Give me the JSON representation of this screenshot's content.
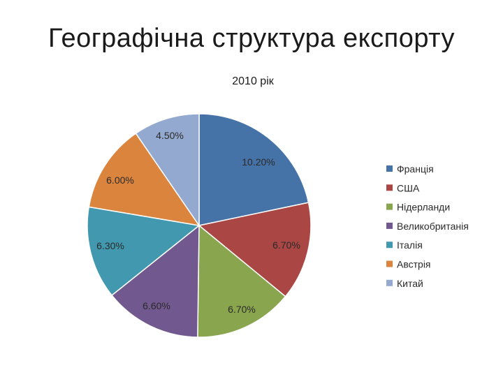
{
  "slide": {
    "title": "Географічна структура експорту"
  },
  "chart_data": {
    "type": "pie",
    "title": "2010 рік",
    "start_angle_deg": 0,
    "direction": "clockwise",
    "legend_position": "right",
    "categories": [
      "Франція",
      "США",
      "Нідерланди",
      "Великобританія",
      "Італія",
      "Австрія",
      "Китай"
    ],
    "values": [
      10.2,
      6.7,
      6.7,
      6.6,
      6.3,
      6.0,
      4.5
    ],
    "labels": [
      "10.20%",
      "6.70%",
      "6.70%",
      "6.60%",
      "6.30%",
      "6.00%",
      "4.50%"
    ],
    "colors": [
      "#4572A7",
      "#AA4643",
      "#89A54E",
      "#71588F",
      "#4198AF",
      "#DB843D",
      "#93A9CF"
    ]
  }
}
